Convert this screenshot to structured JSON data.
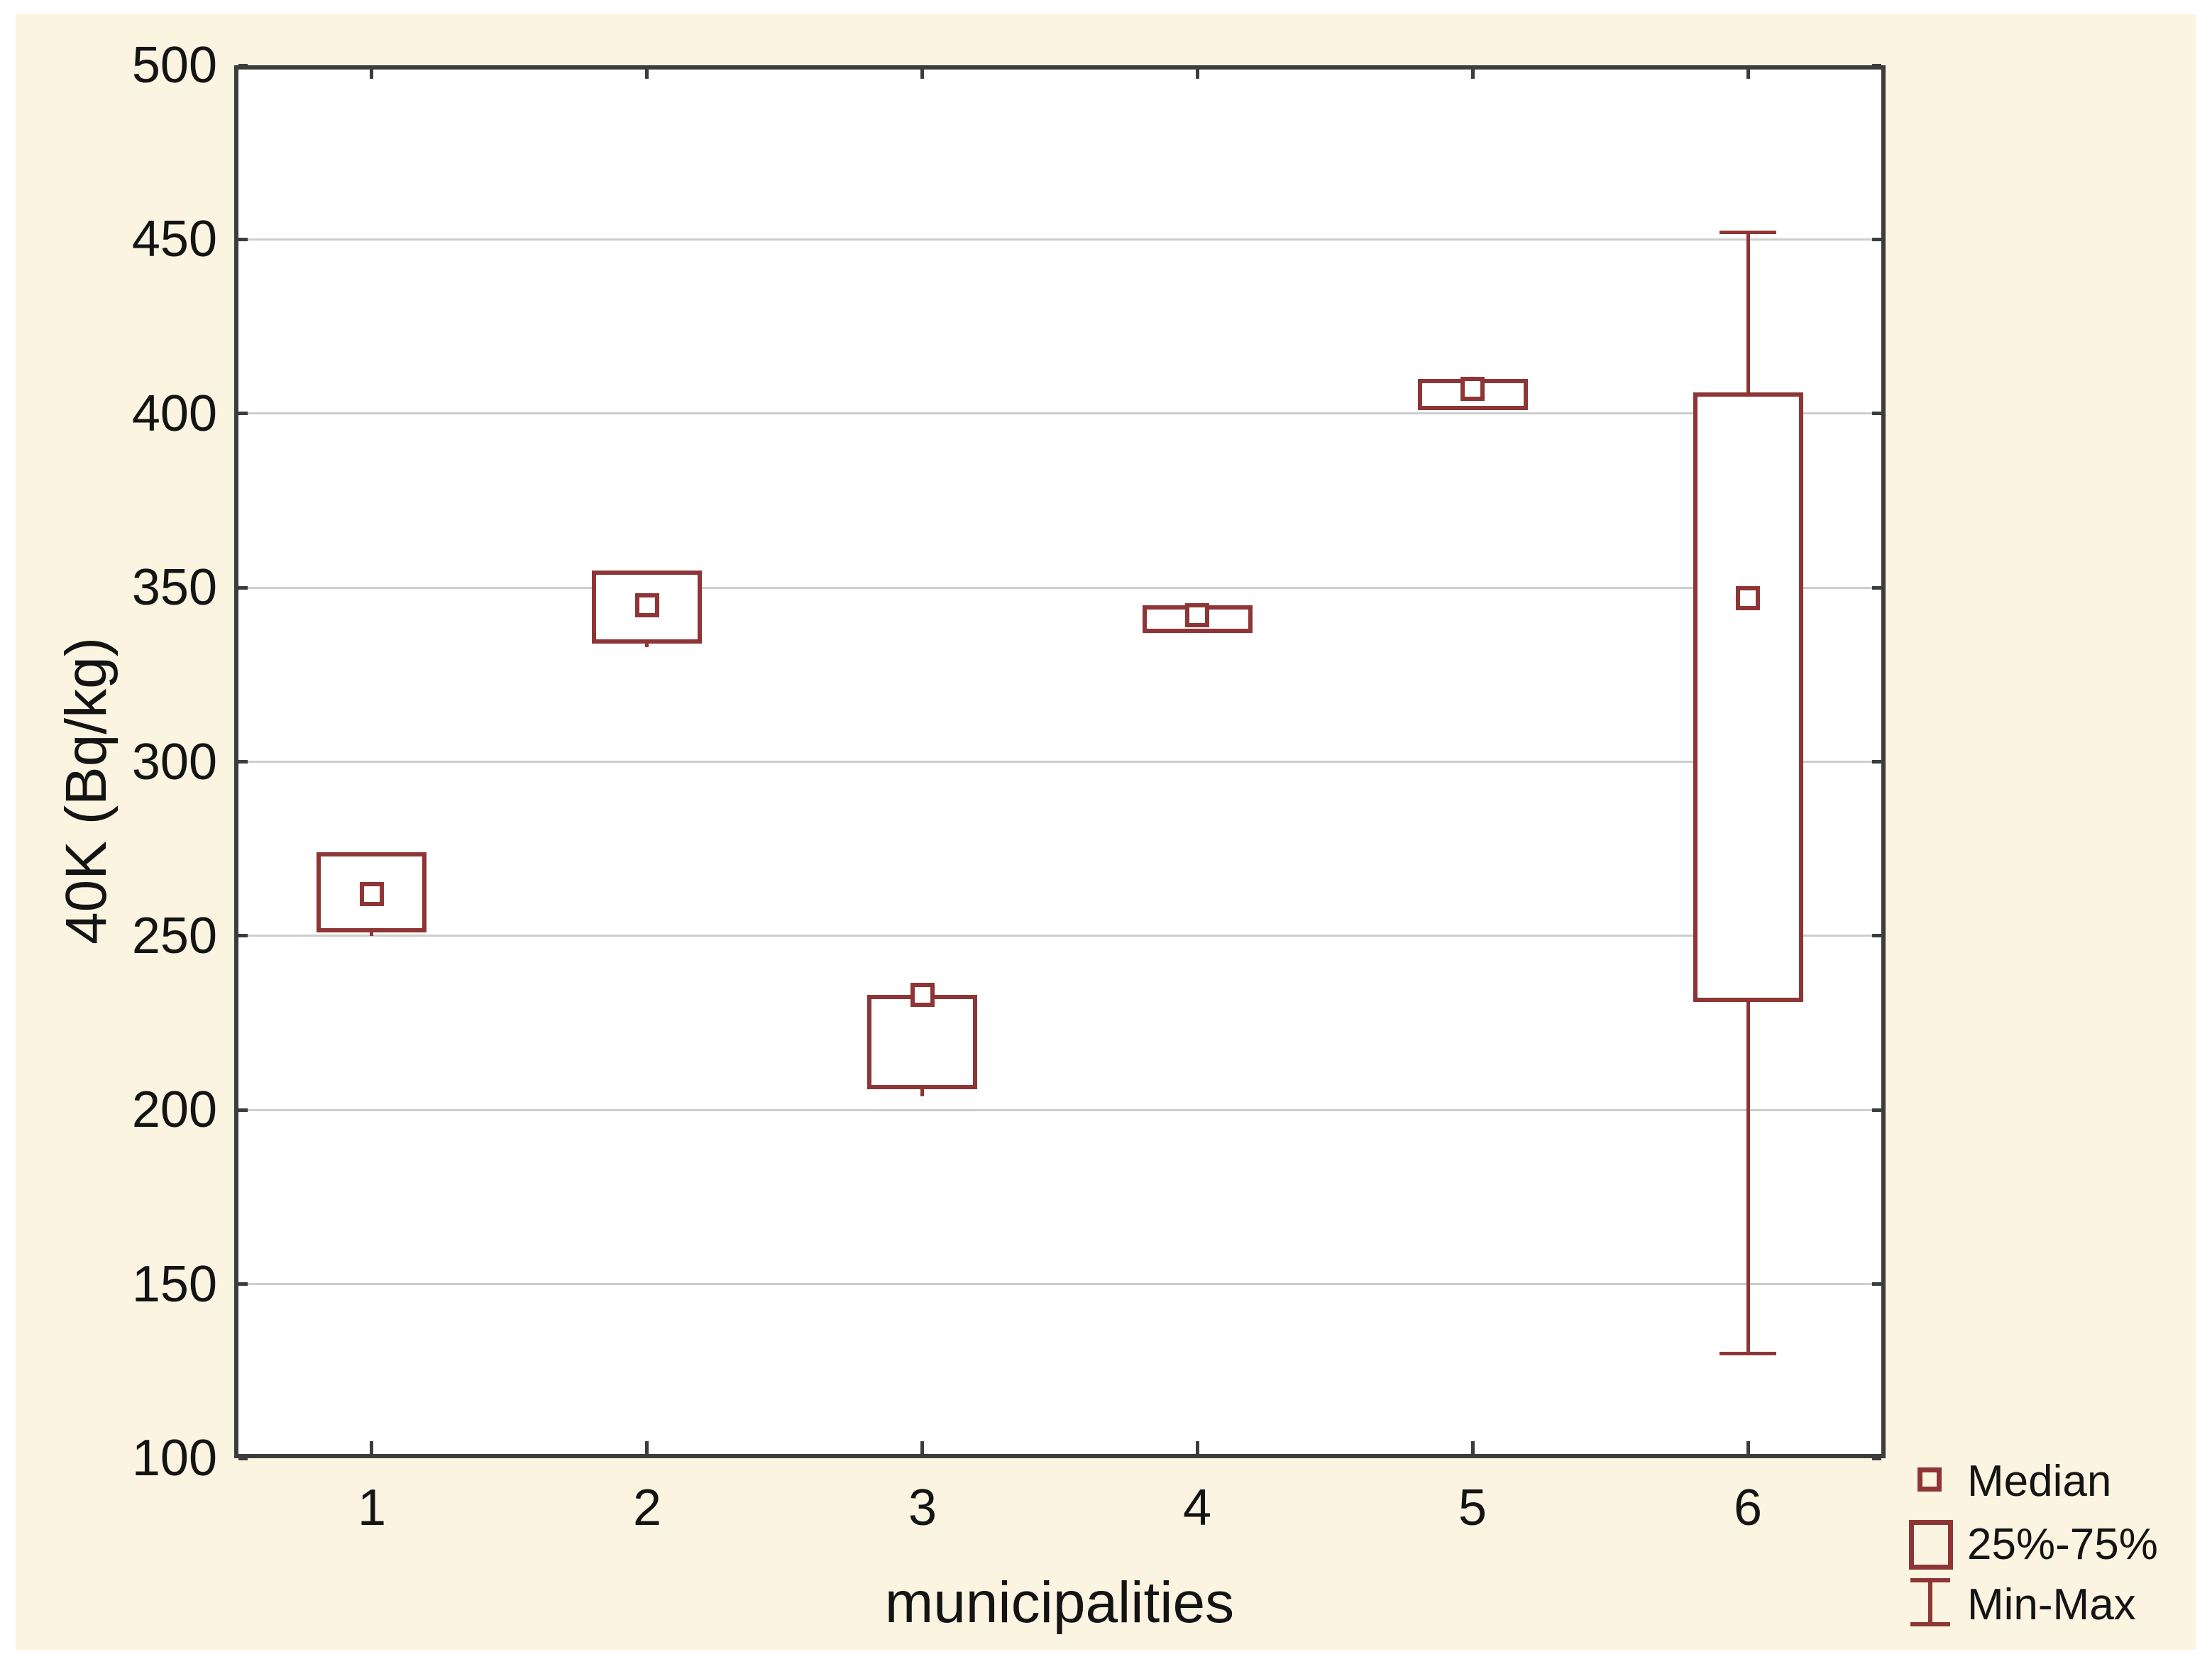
{
  "figure": {
    "background_color": "#FBF4E0",
    "plot_background_color": "#FFFFFF",
    "frame_color": "#3C3C3C",
    "grid_color": "#CDCDCD",
    "box_color": "#8E3536",
    "text_color": "#141414"
  },
  "chart_data": {
    "type": "box",
    "title": "",
    "xlabel": "municipalities",
    "ylabel": "40K (Bq/kg)",
    "ylim": [
      100,
      500
    ],
    "yticks": [
      100,
      150,
      200,
      250,
      300,
      350,
      400,
      450,
      500
    ],
    "grid": "horizontal gridlines at 50-unit steps",
    "legend_position": "bottom-right outside plot",
    "categories": [
      "1",
      "2",
      "3",
      "4",
      "5",
      "6"
    ],
    "boxes": [
      {
        "category": "1",
        "min": 250,
        "q25": 251,
        "median": 262,
        "q75": 274,
        "max": null
      },
      {
        "category": "2",
        "min": 333,
        "q25": 334,
        "median": 345,
        "q75": 355,
        "max": null
      },
      {
        "category": "3",
        "min": 204,
        "q25": 206,
        "median": 233,
        "q75": 233,
        "max": null
      },
      {
        "category": "4",
        "min": null,
        "q25": 337,
        "median": 342,
        "q75": 345,
        "max": null
      },
      {
        "category": "5",
        "min": null,
        "q25": 401,
        "median": 407,
        "q75": 410,
        "max": null
      },
      {
        "category": "6",
        "min": 130,
        "q25": 231,
        "median": 347,
        "q75": 406,
        "max": 452
      }
    ],
    "legend": [
      {
        "symbol": "median-square",
        "label": "Median"
      },
      {
        "symbol": "box",
        "label": "25%-75%"
      },
      {
        "symbol": "whisker",
        "label": "Min-Max"
      }
    ]
  }
}
